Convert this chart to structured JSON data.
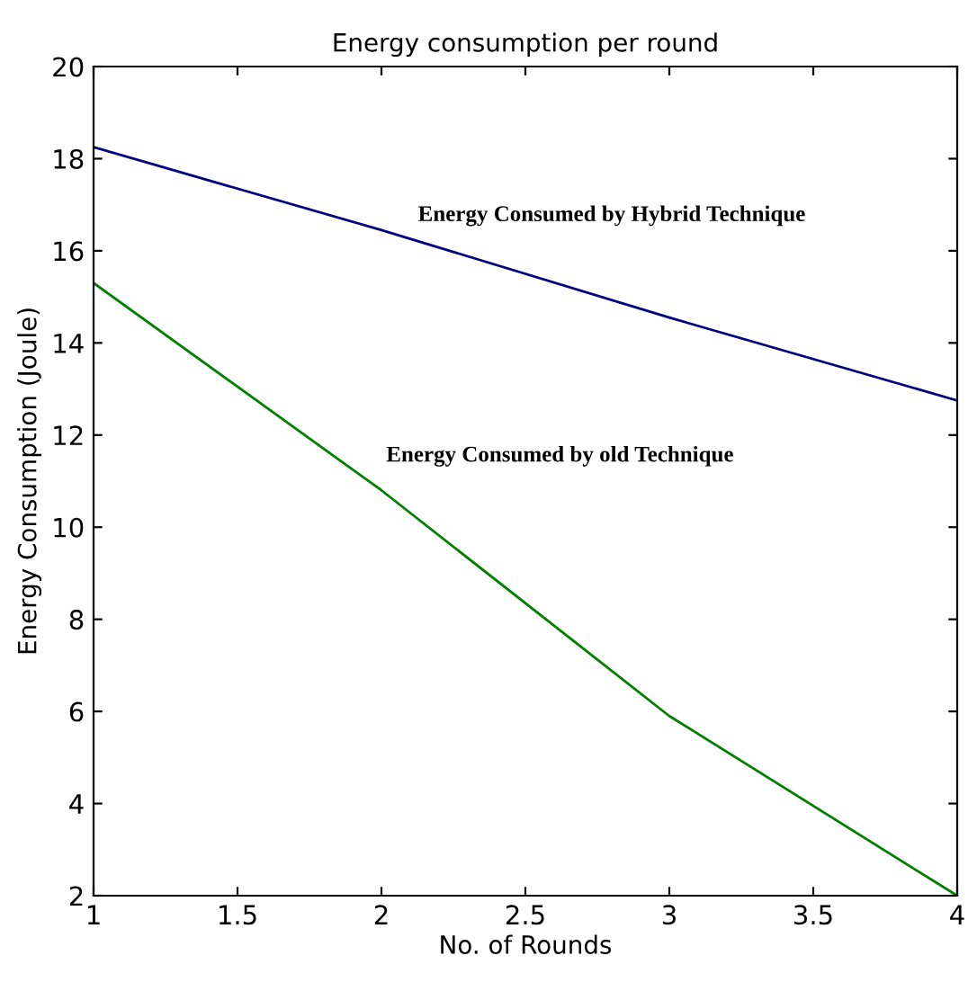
{
  "chart_data": {
    "type": "line",
    "title": "Energy consumption per round",
    "xlabel": "No. of Rounds",
    "ylabel": "Energy Consumption (Joule)",
    "x": [
      1,
      2,
      3,
      4
    ],
    "series": [
      {
        "color": "#000080",
        "values": [
          18.25,
          16.45,
          14.55,
          12.75
        ]
      },
      {
        "color": "#008000",
        "values": [
          15.3,
          10.8,
          5.9,
          2.0
        ]
      }
    ],
    "annotations": [
      "Energy Consumed by Hybrid Technique",
      "Energy Consumed by old Technique"
    ],
    "xlim": [
      1,
      4
    ],
    "ylim": [
      2,
      20
    ],
    "xticks": [
      1,
      1.5,
      2,
      2.5,
      3,
      3.5,
      4
    ],
    "yticks": [
      2,
      4,
      6,
      8,
      10,
      12,
      14,
      16,
      18,
      20
    ],
    "grid": false,
    "marker": "none",
    "line_style": "solid"
  }
}
